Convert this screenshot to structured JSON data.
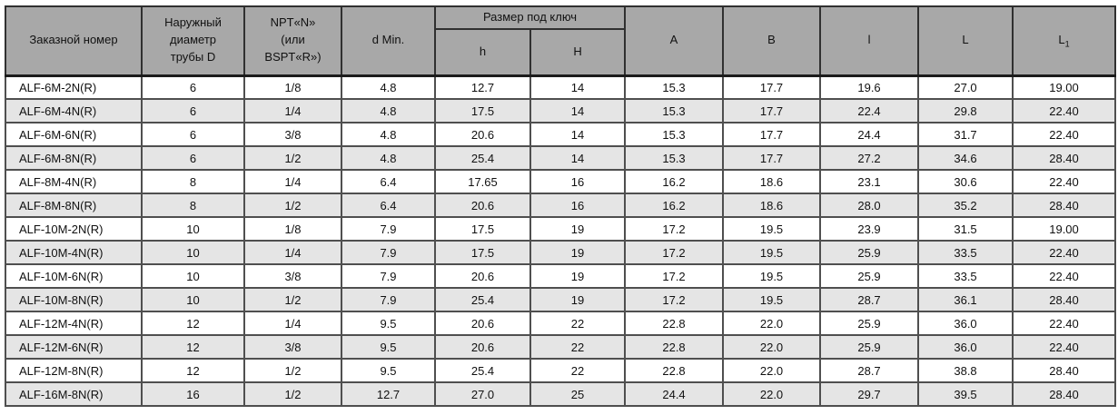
{
  "table": {
    "header": {
      "order_number": "Заказной номер",
      "outer_diameter": "Наружный\nдиаметр\nтрубы D",
      "thread": "NPT«N»\n(или\nBSPT«R»)",
      "d_min": "d Min.",
      "wrench_size_group": "Размер под ключ",
      "h": "h",
      "H": "H",
      "A": "A",
      "B": "B",
      "l": "l",
      "L": "L",
      "L1_base": "L",
      "L1_sub": "1"
    },
    "rows": [
      [
        "ALF-6M-2N(R)",
        "6",
        "1/8",
        "4.8",
        "12.7",
        "14",
        "15.3",
        "17.7",
        "19.6",
        "27.0",
        "19.00"
      ],
      [
        "ALF-6M-4N(R)",
        "6",
        "1/4",
        "4.8",
        "17.5",
        "14",
        "15.3",
        "17.7",
        "22.4",
        "29.8",
        "22.40"
      ],
      [
        "ALF-6M-6N(R)",
        "6",
        "3/8",
        "4.8",
        "20.6",
        "14",
        "15.3",
        "17.7",
        "24.4",
        "31.7",
        "22.40"
      ],
      [
        "ALF-6M-8N(R)",
        "6",
        "1/2",
        "4.8",
        "25.4",
        "14",
        "15.3",
        "17.7",
        "27.2",
        "34.6",
        "28.40"
      ],
      [
        "ALF-8M-4N(R)",
        "8",
        "1/4",
        "6.4",
        "17.65",
        "16",
        "16.2",
        "18.6",
        "23.1",
        "30.6",
        "22.40"
      ],
      [
        "ALF-8M-8N(R)",
        "8",
        "1/2",
        "6.4",
        "20.6",
        "16",
        "16.2",
        "18.6",
        "28.0",
        "35.2",
        "28.40"
      ],
      [
        "ALF-10M-2N(R)",
        "10",
        "1/8",
        "7.9",
        "17.5",
        "19",
        "17.2",
        "19.5",
        "23.9",
        "31.5",
        "19.00"
      ],
      [
        "ALF-10M-4N(R)",
        "10",
        "1/4",
        "7.9",
        "17.5",
        "19",
        "17.2",
        "19.5",
        "25.9",
        "33.5",
        "22.40"
      ],
      [
        "ALF-10M-6N(R)",
        "10",
        "3/8",
        "7.9",
        "20.6",
        "19",
        "17.2",
        "19.5",
        "25.9",
        "33.5",
        "22.40"
      ],
      [
        "ALF-10M-8N(R)",
        "10",
        "1/2",
        "7.9",
        "25.4",
        "19",
        "17.2",
        "19.5",
        "28.7",
        "36.1",
        "28.40"
      ],
      [
        "ALF-12M-4N(R)",
        "12",
        "1/4",
        "9.5",
        "20.6",
        "22",
        "22.8",
        "22.0",
        "25.9",
        "36.0",
        "22.40"
      ],
      [
        "ALF-12M-6N(R)",
        "12",
        "3/8",
        "9.5",
        "20.6",
        "22",
        "22.8",
        "22.0",
        "25.9",
        "36.0",
        "22.40"
      ],
      [
        "ALF-12M-8N(R)",
        "12",
        "1/2",
        "9.5",
        "25.4",
        "22",
        "22.8",
        "22.0",
        "28.7",
        "38.8",
        "28.40"
      ],
      [
        "ALF-16M-8N(R)",
        "16",
        "1/2",
        "12.7",
        "27.0",
        "25",
        "24.4",
        "22.0",
        "29.7",
        "39.5",
        "28.40"
      ]
    ]
  },
  "colors": {
    "header_bg": "#a8a8a8",
    "row_bg": "#ffffff",
    "row_alt_bg": "#e5e5e5",
    "outer_border": "#1c1c1c",
    "cell_border": "#4f4f4f",
    "text": "#111111"
  }
}
